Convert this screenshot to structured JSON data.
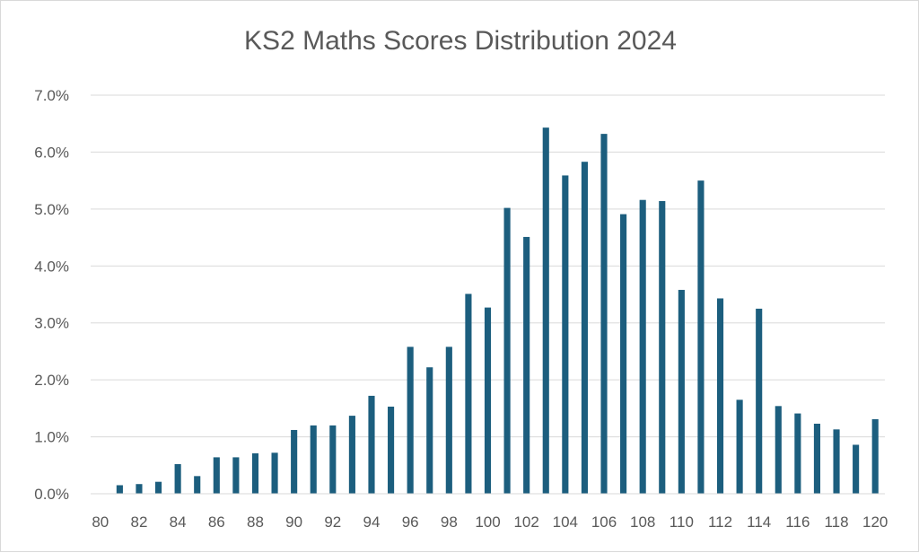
{
  "chart_data": {
    "type": "bar",
    "title": "KS2 Maths Scores Distribution 2024",
    "xlabel": "",
    "ylabel": "",
    "ylim": [
      0,
      0.07
    ],
    "y_ticks": [
      "0.0%",
      "1.0%",
      "2.0%",
      "3.0%",
      "4.0%",
      "5.0%",
      "6.0%",
      "7.0%"
    ],
    "x_tick_labels": [
      "80",
      "82",
      "84",
      "86",
      "88",
      "90",
      "92",
      "94",
      "96",
      "98",
      "100",
      "102",
      "104",
      "106",
      "108",
      "110",
      "112",
      "114",
      "116",
      "118",
      "120"
    ],
    "categories": [
      80,
      81,
      82,
      83,
      84,
      85,
      86,
      87,
      88,
      89,
      90,
      91,
      92,
      93,
      94,
      95,
      96,
      97,
      98,
      99,
      100,
      101,
      102,
      103,
      104,
      105,
      106,
      107,
      108,
      109,
      110,
      111,
      112,
      113,
      114,
      115,
      116,
      117,
      118,
      119,
      120
    ],
    "values": [
      0.0,
      0.0015,
      0.0017,
      0.0021,
      0.0052,
      0.0031,
      0.0064,
      0.0064,
      0.0071,
      0.0072,
      0.0112,
      0.012,
      0.012,
      0.0137,
      0.0172,
      0.0153,
      0.0258,
      0.0222,
      0.0258,
      0.0351,
      0.0327,
      0.0502,
      0.0451,
      0.0643,
      0.0559,
      0.0583,
      0.0632,
      0.0491,
      0.0516,
      0.0514,
      0.0358,
      0.055,
      0.0343,
      0.0165,
      0.0325,
      0.0154,
      0.0141,
      0.0123,
      0.0113,
      0.0086,
      0.0131
    ],
    "grid": true,
    "legend": "none",
    "bar_color": "#1c5e7e"
  }
}
